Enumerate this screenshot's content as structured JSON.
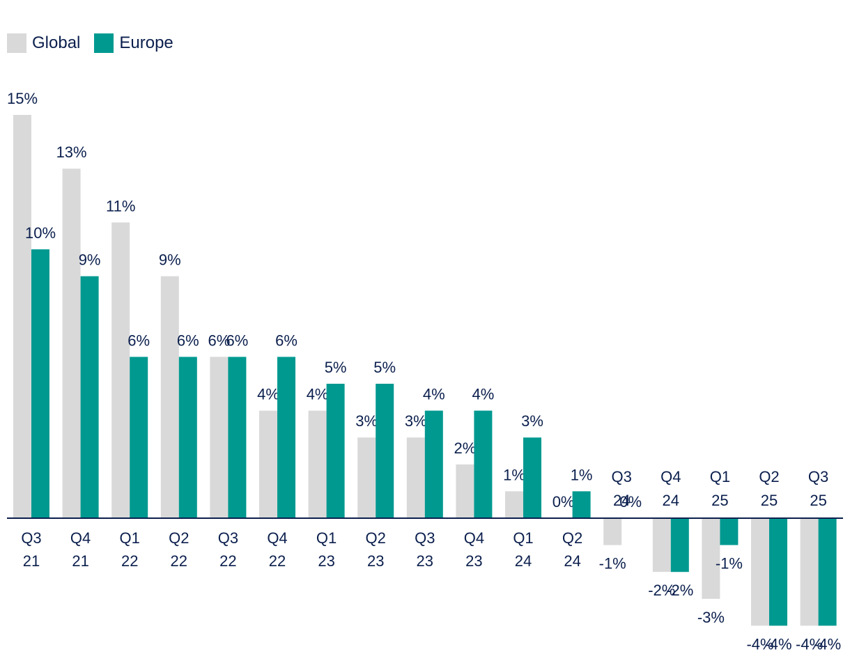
{
  "chart_data": {
    "type": "bar",
    "title": "",
    "xlabel": "",
    "ylabel": "",
    "ylim": [
      -4,
      15
    ],
    "grid": false,
    "legend_position": "top-left",
    "categories": [
      [
        "Q3",
        "21"
      ],
      [
        "Q4",
        "21"
      ],
      [
        "Q1",
        "22"
      ],
      [
        "Q2",
        "22"
      ],
      [
        "Q3",
        "22"
      ],
      [
        "Q4",
        "22"
      ],
      [
        "Q1",
        "23"
      ],
      [
        "Q2",
        "23"
      ],
      [
        "Q3",
        "23"
      ],
      [
        "Q4",
        "23"
      ],
      [
        "Q1",
        "24"
      ],
      [
        "Q2",
        "24"
      ],
      [
        "Q3",
        "24"
      ],
      [
        "Q4",
        "24"
      ],
      [
        "Q1",
        "25"
      ],
      [
        "Q2",
        "25"
      ],
      [
        "Q3",
        "25"
      ]
    ],
    "series": [
      {
        "name": "Global",
        "color": "#d9d9d9",
        "values": [
          15,
          13,
          11,
          9,
          6,
          4,
          4,
          3,
          3,
          2,
          1,
          0,
          -1,
          -2,
          -3,
          -4,
          -4
        ],
        "labels": [
          "15%",
          "13%",
          "11%",
          "9%",
          "6%",
          "4%",
          "4%",
          "3%",
          "3%",
          "2%",
          "1%",
          "0%",
          "-1%",
          "-2%",
          "-3%",
          "-4%",
          "-4%"
        ]
      },
      {
        "name": "Europe",
        "color": "#009990",
        "values": [
          10,
          9,
          6,
          6,
          6,
          6,
          5,
          5,
          4,
          4,
          3,
          1,
          0,
          -2,
          -1,
          -4,
          -4
        ],
        "labels": [
          "10%",
          "9%",
          "6%",
          "6%",
          "6%",
          "6%",
          "5%",
          "5%",
          "4%",
          "4%",
          "3%",
          "1%",
          "0%",
          "-2%",
          "-1%",
          "-4%",
          "-4%"
        ]
      }
    ]
  }
}
